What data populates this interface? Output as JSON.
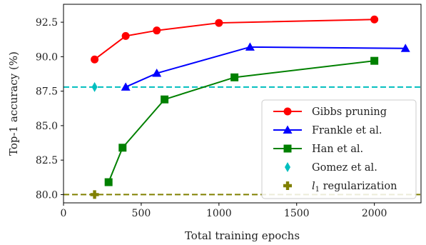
{
  "chart_data": {
    "type": "line",
    "xlabel": "Total training epochs",
    "ylabel": "Top-1 accuracy (%)",
    "xlim": [
      0,
      2300
    ],
    "ylim": [
      79.4,
      93.8
    ],
    "xticks": [
      0,
      500,
      1000,
      1500,
      2000
    ],
    "yticks": [
      80.0,
      82.5,
      85.0,
      87.5,
      90.0,
      92.5
    ],
    "xtick_labels": [
      "0",
      "500",
      "1000",
      "1500",
      "2000"
    ],
    "ytick_labels": [
      "80.0",
      "82.5",
      "85.0",
      "87.5",
      "90.0",
      "92.5"
    ],
    "legend_position": "lower-right",
    "grid": false,
    "series": [
      {
        "name": "Gibbs pruning",
        "color": "#ff0000",
        "marker": "circle",
        "line": true,
        "x": [
          200,
          400,
          600,
          1000,
          2000
        ],
        "y": [
          89.8,
          91.5,
          91.9,
          92.45,
          92.7
        ]
      },
      {
        "name": "Frankle et al.",
        "color": "#0000ff",
        "marker": "triangle",
        "line": true,
        "x": [
          400,
          600,
          1200,
          2200
        ],
        "y": [
          87.8,
          88.8,
          90.7,
          90.6
        ]
      },
      {
        "name": "Han et al.",
        "color": "#008000",
        "marker": "square",
        "line": true,
        "x": [
          290,
          380,
          650,
          1100,
          2000
        ],
        "y": [
          80.9,
          83.4,
          86.9,
          88.5,
          89.7
        ]
      },
      {
        "name": "Gomez et al.",
        "color": "#00bfbf",
        "marker": "diamond",
        "line": false,
        "x": [
          200
        ],
        "y": [
          87.8
        ]
      },
      {
        "name": "l1 regularization",
        "color": "#808000",
        "marker": "plus",
        "line": false,
        "x": [
          200
        ],
        "y": [
          80.0
        ]
      }
    ],
    "reference_lines": [
      {
        "orientation": "horizontal",
        "y": 87.8,
        "color": "#00bfbf",
        "style": "dashed"
      },
      {
        "orientation": "horizontal",
        "y": 80.0,
        "color": "#808000",
        "style": "dashed"
      }
    ]
  }
}
